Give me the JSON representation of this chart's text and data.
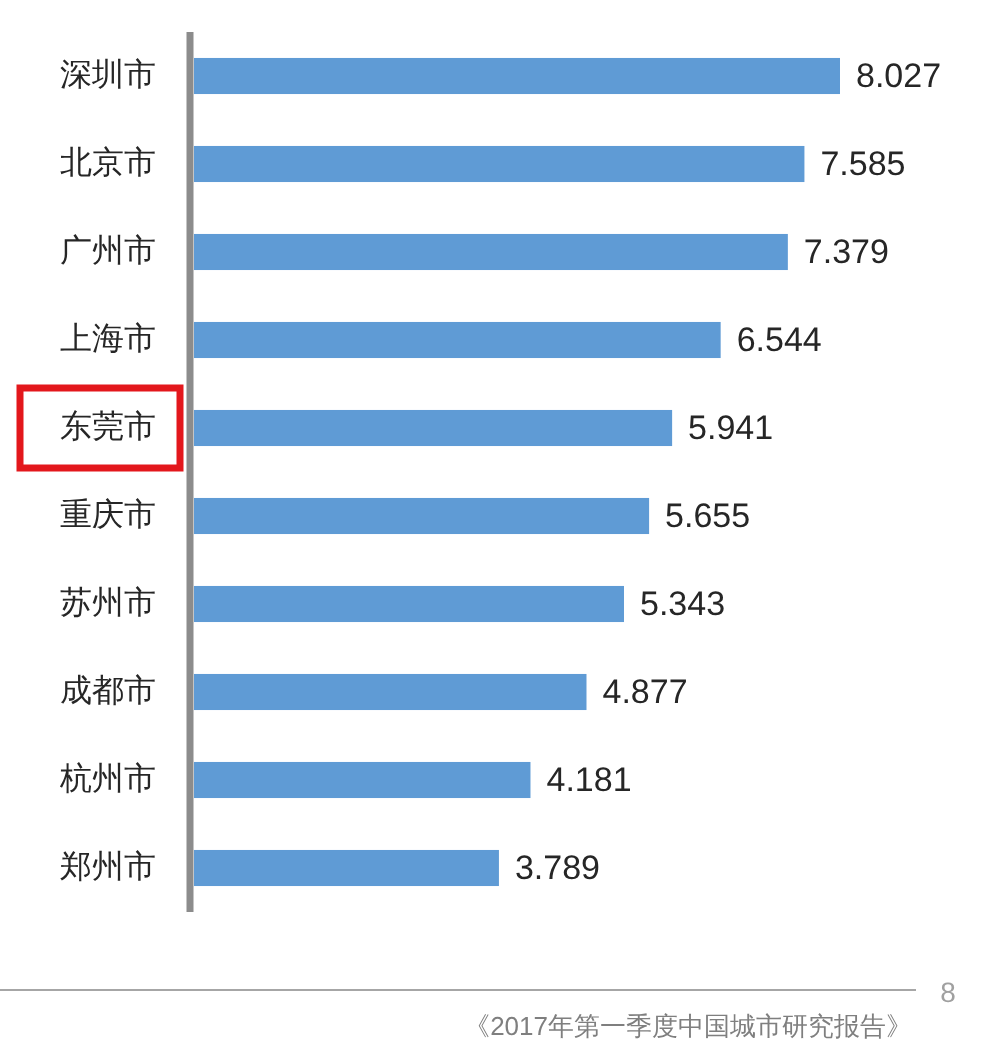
{
  "chart_data": {
    "type": "bar",
    "orientation": "horizontal",
    "categories": [
      "深圳市",
      "北京市",
      "广州市",
      "上海市",
      "东莞市",
      "重庆市",
      "苏州市",
      "成都市",
      "杭州市",
      "郑州市"
    ],
    "values": [
      8.027,
      7.585,
      7.379,
      6.544,
      5.941,
      5.655,
      5.343,
      4.877,
      4.181,
      3.789
    ],
    "color": "#5f9bd5",
    "data_labels": true,
    "annotations": [
      "《2017年第一季度中国城市研究报告》",
      "8"
    ]
  }
}
